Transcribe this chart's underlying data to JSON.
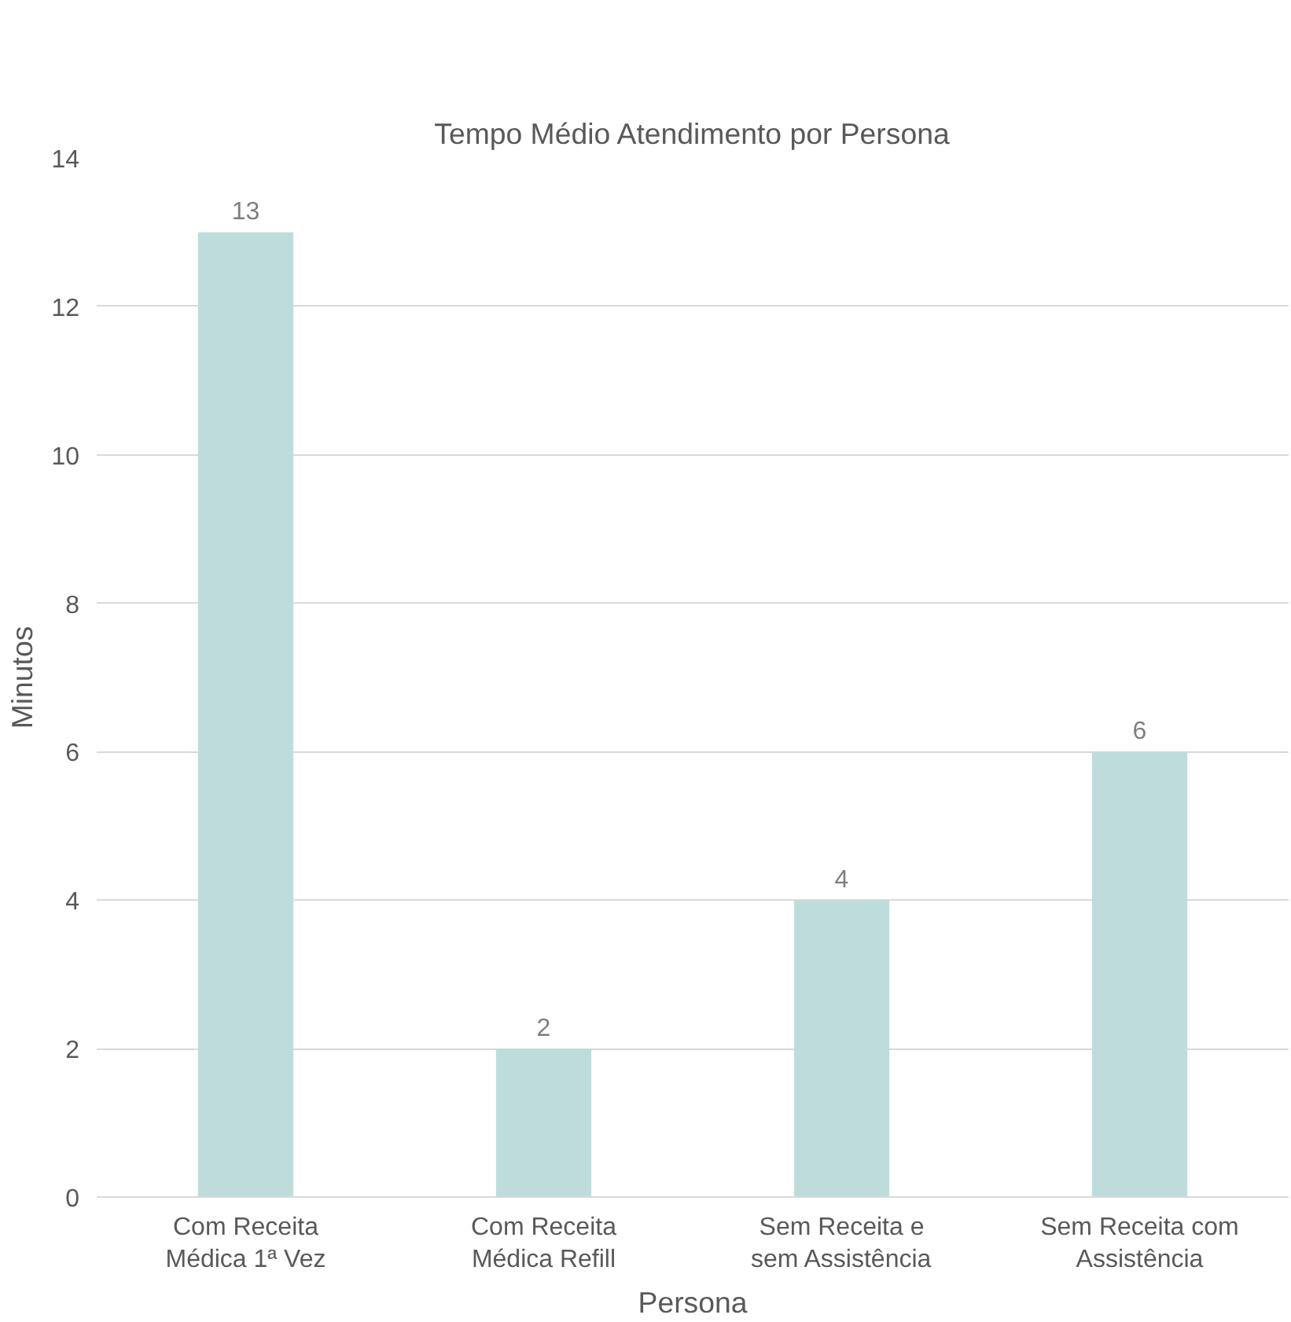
{
  "chart_data": {
    "type": "bar",
    "title": "Tempo Médio Atendimento por Persona",
    "xlabel": "Persona",
    "ylabel": "Minutos",
    "categories": [
      "Com Receita\nMédica 1ª Vez",
      "Com Receita\nMédica Refill",
      "Sem Receita e\nsem Assistência",
      "Sem Receita com\nAssistência"
    ],
    "values": [
      13,
      2,
      4,
      6
    ],
    "color": "#bfdcdc",
    "ylim": [
      0,
      14
    ],
    "yticks": [
      0,
      2,
      4,
      6,
      8,
      10,
      12,
      14
    ],
    "grid": "y",
    "data_labels": true
  }
}
